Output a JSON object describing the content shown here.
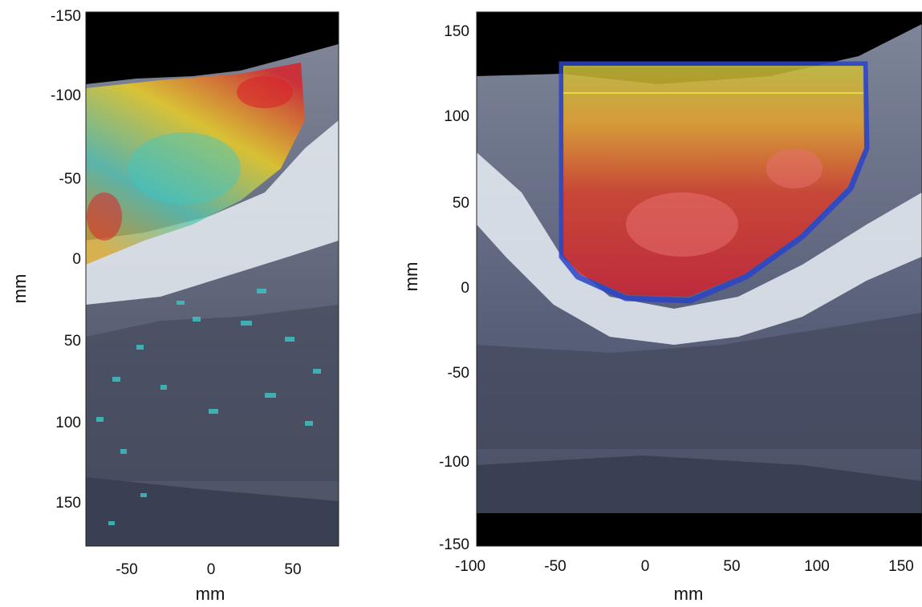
{
  "panels": [
    {
      "id": "left",
      "xlabel": "mm",
      "ylabel": "mm",
      "xticks": [
        "-50",
        "0",
        "50"
      ],
      "yticks": [
        "-150",
        "-100",
        "-50",
        "0",
        "50",
        "100",
        "150"
      ],
      "overlay": "dose-colorwash-scattered"
    },
    {
      "id": "right",
      "xlabel": "mm",
      "ylabel": "mm",
      "xticks": [
        "-100",
        "-50",
        "0",
        "50",
        "100",
        "150"
      ],
      "yticks": [
        "150",
        "100",
        "50",
        "0",
        "-50",
        "-100",
        "-150"
      ],
      "overlay": "dose-colorwash-target"
    }
  ],
  "colors": {
    "background": "#000000",
    "tissue": "#6d7385",
    "dark_tissue": "#3f4558",
    "bone": "#e9eef4",
    "dose_high": "#d8232a",
    "dose_mid": "#f2d21f",
    "dose_low": "#3fc7c6",
    "dose_edge": "#2a43c8"
  }
}
